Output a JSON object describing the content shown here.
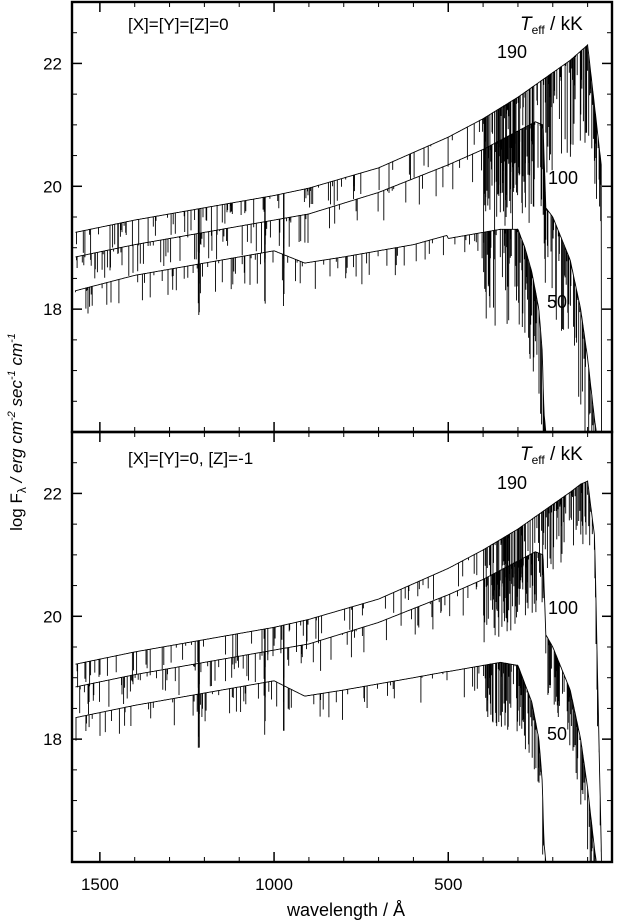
{
  "figure": {
    "ylabel_prefix": "log F",
    "ylabel_sub": "λ",
    "ylabel_rest": " / erg cm",
    "ylabel_exp1": "-2",
    "ylabel_sec": " sec",
    "ylabel_exp2": "-1",
    "ylabel_cm": " cm",
    "ylabel_exp3": "-1",
    "xlabel": "wavelength / Å"
  },
  "chart_data": [
    {
      "type": "line",
      "panel": "top",
      "annotation": "[X]=[Y]=[Z]=0",
      "legend_title_T": "T",
      "legend_title_sub": "eff",
      "legend_title_unit": " / kK",
      "xlim": [
        1580,
        30
      ],
      "ylim": [
        16.0,
        23.0
      ],
      "x_ticks": [
        1500,
        1000,
        500
      ],
      "y_ticks": [
        18,
        20,
        22
      ],
      "y_tick_labels": [
        "18",
        "20",
        "22"
      ],
      "series": [
        {
          "name": "190",
          "x": [
            1570,
            1400,
            1200,
            1000,
            900,
            700,
            500,
            400,
            300,
            250,
            200,
            150,
            120,
            100,
            80,
            60
          ],
          "y": [
            19.25,
            19.45,
            19.65,
            19.85,
            19.97,
            20.3,
            20.8,
            21.1,
            21.45,
            21.65,
            21.85,
            22.05,
            22.2,
            22.3,
            21.3,
            20.3
          ]
        },
        {
          "name": "100",
          "x": [
            1570,
            1400,
            1200,
            1000,
            900,
            700,
            500,
            400,
            300,
            250,
            228,
            220,
            200,
            150,
            120,
            100,
            90,
            80,
            75
          ],
          "y": [
            18.85,
            19.05,
            19.25,
            19.45,
            19.55,
            19.9,
            20.35,
            20.6,
            20.9,
            21.05,
            21.0,
            19.65,
            19.5,
            18.8,
            18.0,
            17.2,
            16.7,
            16.2,
            16.0
          ]
        },
        {
          "name": "50",
          "x": [
            1570,
            1400,
            1200,
            1100,
            1000,
            912,
            800,
            700,
            600,
            504,
            500,
            450,
            400,
            350,
            300,
            280,
            260,
            240,
            230,
            228,
            225,
            220
          ],
          "y": [
            18.3,
            18.55,
            18.75,
            18.85,
            18.95,
            18.75,
            18.85,
            18.95,
            19.05,
            19.2,
            19.15,
            19.2,
            19.25,
            19.3,
            19.3,
            19.0,
            18.6,
            18.0,
            17.3,
            16.8,
            16.3,
            16.0
          ]
        }
      ]
    },
    {
      "type": "line",
      "panel": "bottom",
      "annotation": "[X]=[Y]=0, [Z]=-1",
      "legend_title_T": "T",
      "legend_title_sub": "eff",
      "legend_title_unit": " / kK",
      "xlim": [
        1580,
        30
      ],
      "ylim": [
        16.0,
        23.0
      ],
      "x_ticks": [
        1500,
        1000,
        500
      ],
      "x_tick_labels": [
        "1500",
        "1000",
        "500"
      ],
      "y_ticks": [
        18,
        20,
        22
      ],
      "y_tick_labels": [
        "18",
        "20",
        "22"
      ],
      "series": [
        {
          "name": "190",
          "x": [
            1570,
            1400,
            1200,
            1000,
            900,
            700,
            500,
            400,
            300,
            250,
            200,
            150,
            120,
            100,
            80,
            60
          ],
          "y": [
            19.22,
            19.42,
            19.62,
            19.82,
            19.95,
            20.28,
            20.78,
            21.08,
            21.42,
            21.62,
            21.82,
            22.02,
            22.15,
            22.2,
            21.3,
            16.0
          ]
        },
        {
          "name": "100",
          "x": [
            1570,
            1400,
            1200,
            1000,
            900,
            700,
            500,
            400,
            300,
            250,
            228,
            220,
            200,
            150,
            120,
            100,
            90,
            80,
            75
          ],
          "y": [
            18.85,
            19.05,
            19.25,
            19.45,
            19.55,
            19.9,
            20.35,
            20.6,
            20.9,
            21.05,
            21.0,
            19.7,
            19.5,
            18.8,
            18.0,
            17.2,
            16.7,
            16.2,
            16.0
          ]
        },
        {
          "name": "50",
          "x": [
            1570,
            1400,
            1200,
            1100,
            1000,
            912,
            800,
            700,
            600,
            504,
            500,
            450,
            400,
            350,
            300,
            280,
            260,
            240,
            230,
            228,
            225,
            220
          ],
          "y": [
            18.35,
            18.55,
            18.75,
            18.85,
            18.95,
            18.7,
            18.8,
            18.9,
            19.0,
            19.1,
            19.1,
            19.15,
            19.2,
            19.25,
            19.2,
            18.9,
            18.6,
            18.0,
            17.3,
            16.8,
            16.3,
            16.0
          ]
        }
      ]
    }
  ]
}
